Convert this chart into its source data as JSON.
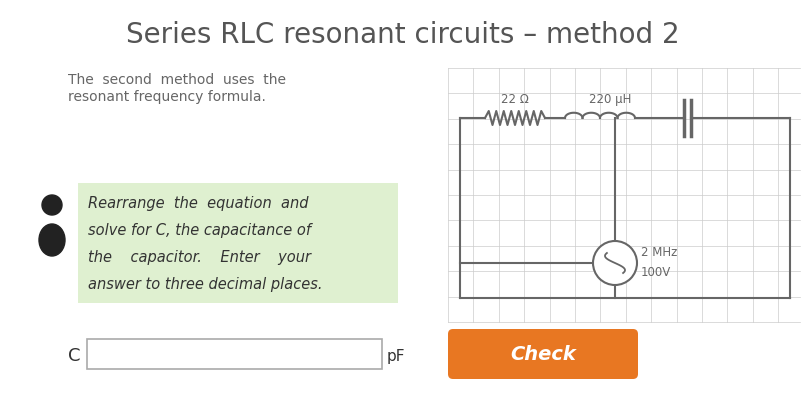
{
  "title": "Series RLC resonant circuits – method 2",
  "subtitle_line1": "The  second  method  uses  the",
  "subtitle_line2": "resonant frequency formula.",
  "green_box_text_line1": "Rearrange  the  equation  and",
  "green_box_text_line2": "solve for C, the capacitance of",
  "green_box_text_line3": "the    capacitor.    Enter    your",
  "green_box_text_line4": "answer to three decimal places.",
  "input_label": "C",
  "input_unit": "pF",
  "check_button_text": "Check",
  "check_button_color": "#E87722",
  "check_button_text_color": "#ffffff",
  "green_box_color": "#dff0d0",
  "background_color": "#ffffff",
  "title_color": "#555555",
  "body_text_color": "#666666",
  "circuit_label_22ohm": "22 Ω",
  "circuit_label_220uH": "220 μH",
  "circuit_label_2MHz": "2 MHz",
  "circuit_label_100V": "100V",
  "grid_color": "#cccccc",
  "circuit_line_color": "#666666",
  "title_fontsize": 20,
  "body_fontsize": 10,
  "green_text_fontsize": 10.5
}
